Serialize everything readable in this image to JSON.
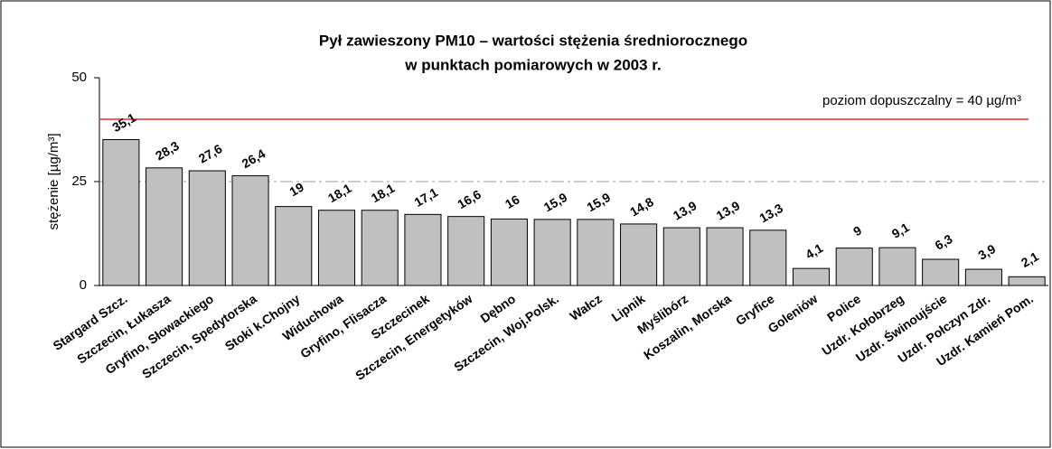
{
  "chart_data": {
    "type": "bar",
    "title": [
      "Pył zawieszony PM10 – wartości stężenia średniorocznego",
      "w punktach pomiarowych w 2003 r."
    ],
    "y_label": "stężenie [µg/m³]",
    "categories": [
      "Stargard Szcz.",
      "Szczecin, Łukasza",
      "Gryfino, Słowackiego",
      "Szczecin, Spedytorska",
      "Stoki k.Chojny",
      "Widuchowa",
      "Gryfino, Flisacza",
      "Szczecinek",
      "Szczecin, Energetyków",
      "Dębno",
      "Szczecin, Woj.Polsk.",
      "Wałcz",
      "Lipnik",
      "Myślibórz",
      "Koszalin, Morska",
      "Gryfice",
      "Goleniów",
      "Police",
      "Uzdr. Kołobrzeg",
      "Uzdr. Świnoujście",
      "Uzdr. Połczyn Zdr.",
      "Uzdr. Kamień Pom."
    ],
    "values": [
      35.1,
      28.3,
      27.6,
      26.4,
      19,
      18.1,
      18.1,
      17.1,
      16.6,
      16,
      15.9,
      15.9,
      14.8,
      13.9,
      13.9,
      13.3,
      4.1,
      9,
      9.1,
      6.3,
      3.9,
      2.1
    ],
    "value_labels": [
      "35,1",
      "28,3",
      "27,6",
      "26,4",
      "19",
      "18,1",
      "18,1",
      "17,1",
      "16,6",
      "16",
      "15,9",
      "15,9",
      "14,8",
      "13,9",
      "13,9",
      "13,3",
      "4,1",
      "9",
      "9,1",
      "6,3",
      "3,9",
      "2,1"
    ],
    "color": "#c0c0c0",
    "ylim": [
      0,
      50
    ],
    "yticks": [
      0,
      25,
      50
    ],
    "grid": true,
    "reference_line": {
      "value": 40,
      "label": "poziom dopuszczalny = 40 µg/m³",
      "color": "#e03030"
    }
  }
}
